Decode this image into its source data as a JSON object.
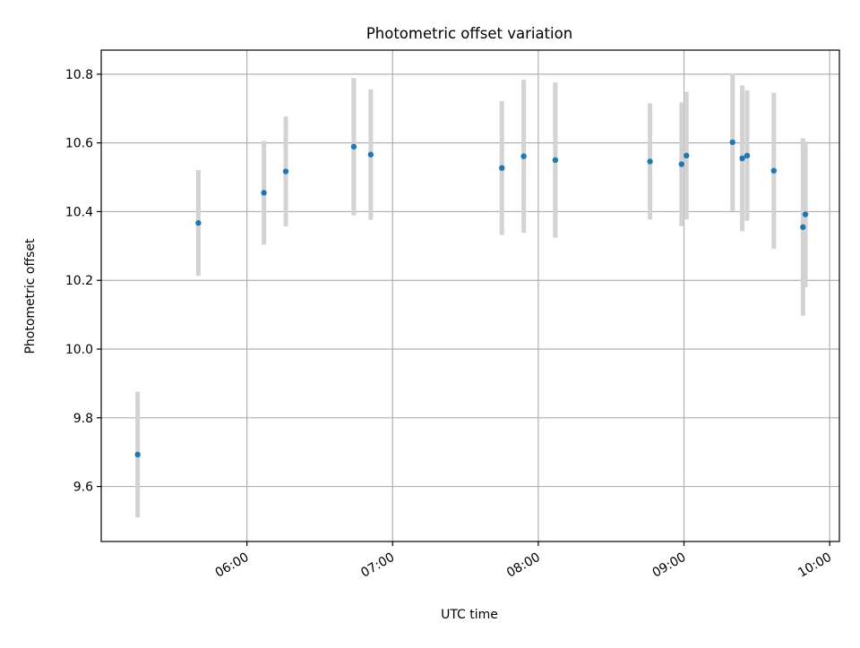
{
  "chart_data": {
    "type": "scatter",
    "title": "Photometric offset variation",
    "xlabel": "UTC time",
    "ylabel": "Photometric offset",
    "x_is_time": true,
    "xlim": [
      "05:00",
      "10:04"
    ],
    "ylim": [
      9.44,
      10.87
    ],
    "grid": true,
    "x_ticks": [
      "06:00",
      "07:00",
      "08:00",
      "09:00",
      "10:00"
    ],
    "y_ticks": [
      "9.6",
      "9.8",
      "10.0",
      "10.2",
      "10.4",
      "10.6",
      "10.8"
    ],
    "errorbar_color": "#d3d3d3",
    "marker_color": "#1f77b4",
    "points": [
      {
        "t": "05:15",
        "y": 9.693,
        "err": 0.183
      },
      {
        "t": "05:40",
        "y": 10.367,
        "err": 0.154
      },
      {
        "t": "06:07",
        "y": 10.455,
        "err": 0.151
      },
      {
        "t": "06:16",
        "y": 10.517,
        "err": 0.16
      },
      {
        "t": "06:44",
        "y": 10.589,
        "err": 0.2
      },
      {
        "t": "06:51",
        "y": 10.566,
        "err": 0.19
      },
      {
        "t": "07:45",
        "y": 10.527,
        "err": 0.195
      },
      {
        "t": "07:54",
        "y": 10.561,
        "err": 0.223
      },
      {
        "t": "08:07",
        "y": 10.55,
        "err": 0.226
      },
      {
        "t": "08:46",
        "y": 10.546,
        "err": 0.169
      },
      {
        "t": "08:59",
        "y": 10.538,
        "err": 0.18
      },
      {
        "t": "09:01",
        "y": 10.563,
        "err": 0.186
      },
      {
        "t": "09:20",
        "y": 10.602,
        "err": 0.2
      },
      {
        "t": "09:24",
        "y": 10.555,
        "err": 0.212
      },
      {
        "t": "09:26",
        "y": 10.563,
        "err": 0.19
      },
      {
        "t": "09:37",
        "y": 10.519,
        "err": 0.227
      },
      {
        "t": "09:49",
        "y": 10.355,
        "err": 0.258
      },
      {
        "t": "09:50",
        "y": 10.392,
        "err": 0.212
      }
    ]
  }
}
